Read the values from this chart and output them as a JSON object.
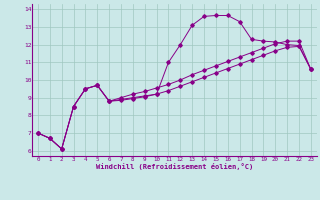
{
  "xlabel": "Windchill (Refroidissement éolien,°C)",
  "background_color": "#cbe8e8",
  "grid_color": "#a0c8c0",
  "line_color": "#880088",
  "xlim": [
    -0.5,
    23.5
  ],
  "ylim": [
    5.7,
    14.3
  ],
  "xticks": [
    0,
    1,
    2,
    3,
    4,
    5,
    6,
    7,
    8,
    9,
    10,
    11,
    12,
    13,
    14,
    15,
    16,
    17,
    18,
    19,
    20,
    21,
    22,
    23
  ],
  "yticks": [
    6,
    7,
    8,
    9,
    10,
    11,
    12,
    13,
    14
  ],
  "series1_x": [
    0,
    1,
    2,
    3,
    4,
    5,
    6,
    7,
    8,
    9,
    10,
    11,
    12,
    13,
    14,
    15,
    16,
    17,
    18,
    19,
    20,
    21,
    22,
    23
  ],
  "series1_y": [
    7.0,
    6.7,
    6.1,
    8.5,
    9.5,
    9.7,
    8.8,
    8.9,
    9.0,
    9.1,
    9.2,
    11.0,
    12.0,
    13.1,
    13.6,
    13.65,
    13.65,
    13.3,
    12.3,
    12.2,
    12.15,
    12.0,
    11.95,
    10.6
  ],
  "series2_x": [
    0,
    1,
    2,
    3,
    4,
    5,
    6,
    7,
    8,
    9,
    10,
    11,
    12,
    13,
    14,
    15,
    16,
    17,
    18,
    19,
    20,
    21,
    22,
    23
  ],
  "series2_y": [
    7.0,
    6.7,
    6.1,
    8.5,
    9.5,
    9.7,
    8.8,
    9.0,
    9.2,
    9.35,
    9.55,
    9.75,
    10.0,
    10.3,
    10.55,
    10.8,
    11.05,
    11.3,
    11.55,
    11.8,
    12.05,
    12.2,
    12.2,
    10.6
  ],
  "series3_x": [
    0,
    1,
    2,
    3,
    4,
    5,
    6,
    7,
    8,
    9,
    10,
    11,
    12,
    13,
    14,
    15,
    16,
    17,
    18,
    19,
    20,
    21,
    22,
    23
  ],
  "series3_y": [
    7.0,
    6.7,
    6.1,
    8.5,
    9.5,
    9.7,
    8.8,
    8.85,
    8.95,
    9.05,
    9.2,
    9.4,
    9.65,
    9.9,
    10.15,
    10.4,
    10.65,
    10.9,
    11.15,
    11.4,
    11.65,
    11.85,
    11.9,
    10.6
  ]
}
